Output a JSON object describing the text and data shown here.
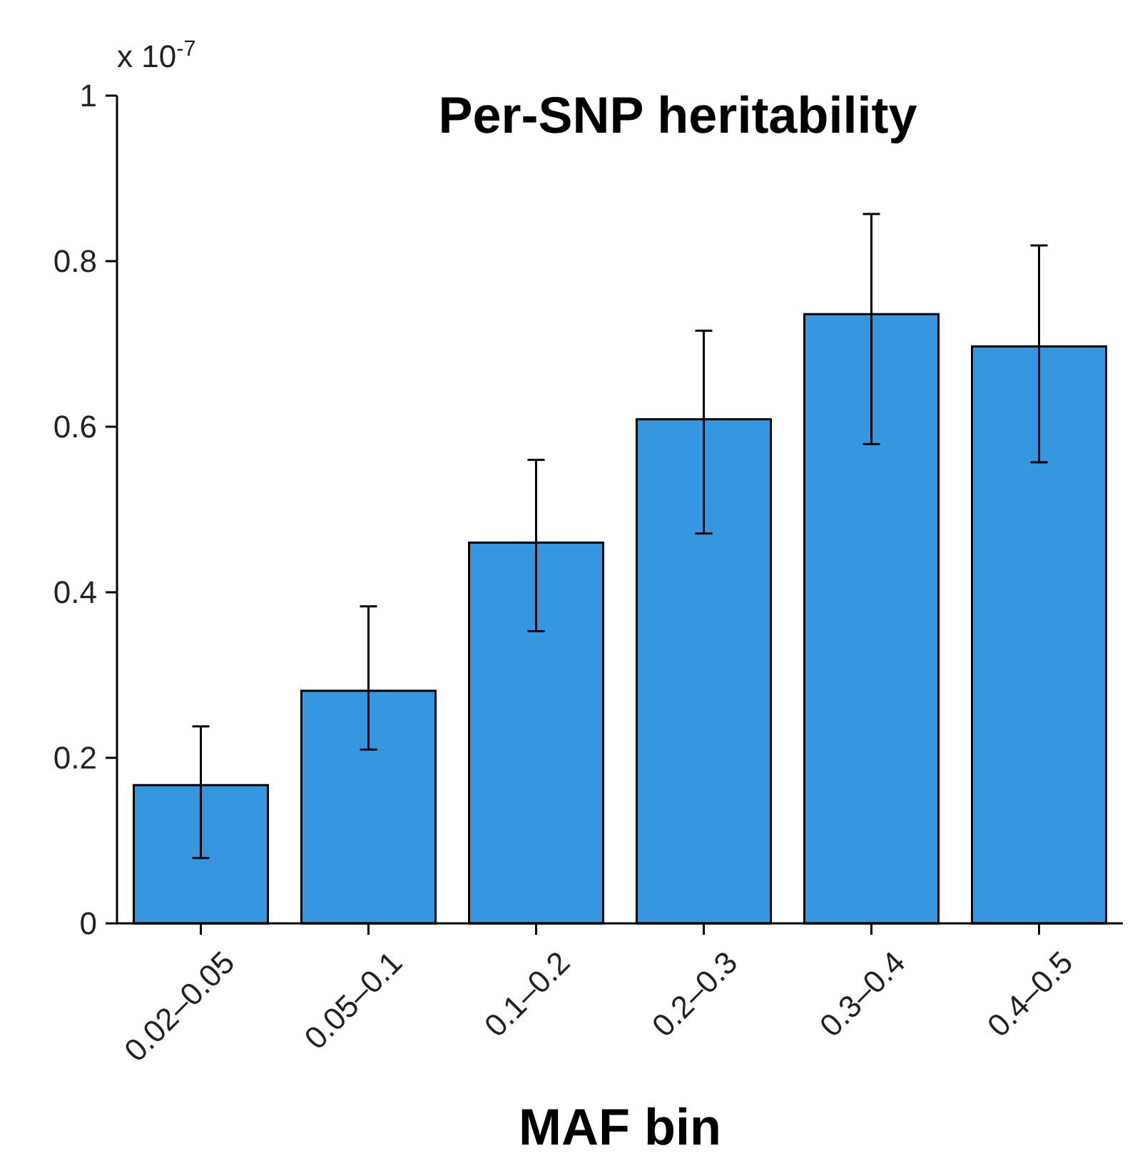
{
  "chart_data": {
    "type": "bar",
    "title": "Per-SNP heritability",
    "xlabel": "MAF bin",
    "categories": [
      "0.02–0.05",
      "0.05–0.1",
      "0.1–0.2",
      "0.2–0.3",
      "0.3–0.4",
      "0.4–0.5"
    ],
    "values": [
      0.167,
      0.281,
      0.46,
      0.609,
      0.736,
      0.697
    ],
    "errors": [
      [
        0.079,
        0.238
      ],
      [
        0.21,
        0.383
      ],
      [
        0.353,
        0.56
      ],
      [
        0.471,
        0.716
      ],
      [
        0.579,
        0.857
      ],
      [
        0.557,
        0.819
      ]
    ],
    "color": "#3597e0",
    "ylim": [
      0,
      1
    ],
    "yticks": [
      0,
      0.2,
      0.4,
      0.6,
      0.8,
      1
    ],
    "annotations": [
      "x 10$^{-7}$"
    ],
    "grid": false
  }
}
